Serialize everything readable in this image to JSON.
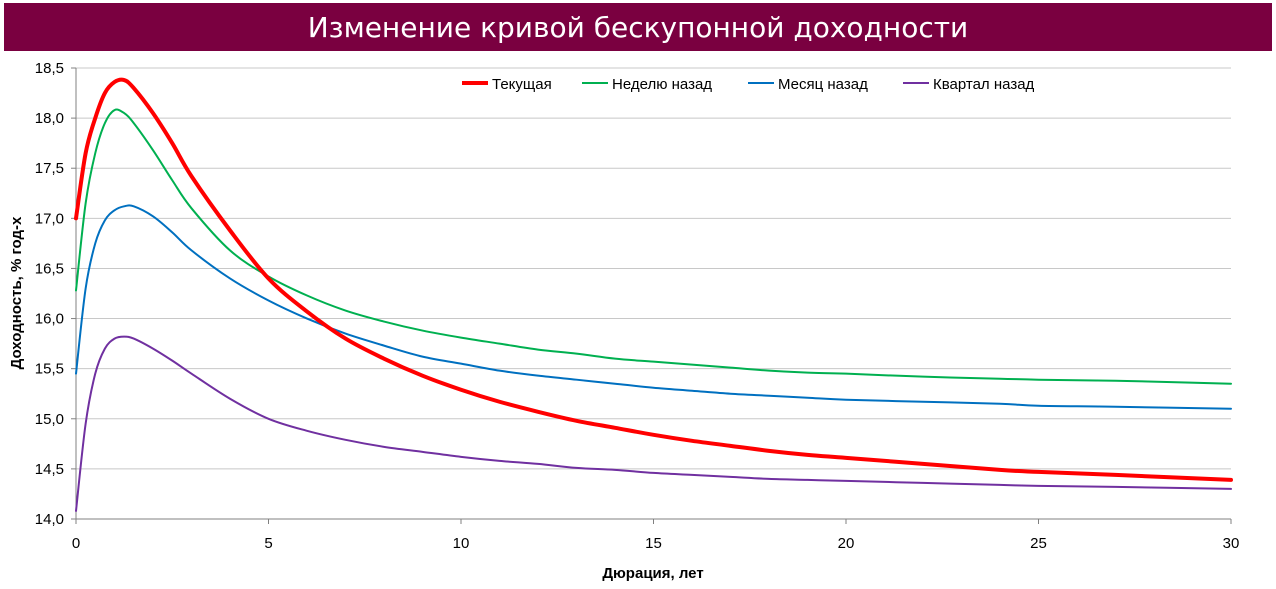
{
  "chart_data": {
    "type": "line",
    "title": "Изменение кривой бескупонной доходности",
    "xlabel": "Дюрация, лет",
    "ylabel": "Доходность, % год-х",
    "xlim": [
      0,
      30
    ],
    "ylim": [
      14.0,
      18.5
    ],
    "x_ticks": [
      "0",
      "5",
      "10",
      "15",
      "20",
      "25",
      "30"
    ],
    "y_ticks": [
      "14,0",
      "14,5",
      "15,0",
      "15,5",
      "16,0",
      "16,5",
      "17,0",
      "17,5",
      "18,0",
      "18,5"
    ],
    "grid": "horizontal",
    "legend_position": "top",
    "series": [
      {
        "name": "Текущая",
        "color": "#ff0000",
        "width": 4,
        "x": [
          0,
          0.25,
          0.5,
          0.75,
          1,
          1.25,
          1.5,
          2,
          2.5,
          3,
          4,
          5,
          6,
          7,
          8,
          9,
          10,
          11,
          12,
          13,
          14,
          15,
          16,
          17,
          18,
          19,
          20,
          22,
          24,
          25,
          27,
          30
        ],
        "y": [
          17.0,
          17.65,
          18.0,
          18.25,
          18.36,
          18.38,
          18.3,
          18.05,
          17.75,
          17.42,
          16.88,
          16.4,
          16.07,
          15.8,
          15.6,
          15.43,
          15.29,
          15.17,
          15.07,
          14.98,
          14.91,
          14.84,
          14.78,
          14.73,
          14.68,
          14.64,
          14.61,
          14.55,
          14.49,
          14.47,
          14.44,
          14.39
        ]
      },
      {
        "name": "Неделю назад",
        "color": "#00b050",
        "width": 2,
        "x": [
          0,
          0.25,
          0.5,
          0.75,
          1,
          1.25,
          1.5,
          2,
          2.5,
          3,
          4,
          5,
          6,
          7,
          8,
          9,
          10,
          11,
          12,
          13,
          14,
          15,
          16,
          17,
          18,
          19,
          20,
          22,
          24,
          25,
          27,
          30
        ],
        "y": [
          16.28,
          17.15,
          17.65,
          17.95,
          18.08,
          18.05,
          17.95,
          17.68,
          17.38,
          17.1,
          16.68,
          16.42,
          16.23,
          16.08,
          15.97,
          15.88,
          15.81,
          15.75,
          15.69,
          15.65,
          15.6,
          15.57,
          15.54,
          15.51,
          15.48,
          15.46,
          15.45,
          15.42,
          15.4,
          15.39,
          15.38,
          15.35
        ]
      },
      {
        "name": "Месяц назад",
        "color": "#0070c0",
        "width": 2,
        "x": [
          0,
          0.25,
          0.5,
          0.75,
          1,
          1.25,
          1.5,
          2,
          2.5,
          3,
          4,
          5,
          6,
          7,
          8,
          9,
          10,
          11,
          12,
          13,
          14,
          15,
          16,
          17,
          18,
          19,
          20,
          22,
          24,
          25,
          27,
          30
        ],
        "y": [
          15.45,
          16.3,
          16.75,
          16.98,
          17.08,
          17.12,
          17.12,
          17.02,
          16.86,
          16.68,
          16.4,
          16.18,
          16.0,
          15.85,
          15.73,
          15.62,
          15.55,
          15.48,
          15.43,
          15.39,
          15.35,
          15.31,
          15.28,
          15.25,
          15.23,
          15.21,
          15.19,
          15.17,
          15.15,
          15.13,
          15.12,
          15.1
        ]
      },
      {
        "name": "Квартал назад",
        "color": "#7030a0",
        "width": 2,
        "x": [
          0,
          0.25,
          0.5,
          0.75,
          1,
          1.25,
          1.5,
          2,
          2.5,
          3,
          4,
          5,
          6,
          7,
          8,
          9,
          10,
          11,
          12,
          13,
          14,
          15,
          16,
          17,
          18,
          19,
          20,
          22,
          24,
          25,
          27,
          30
        ],
        "y": [
          14.08,
          14.95,
          15.45,
          15.7,
          15.8,
          15.82,
          15.8,
          15.7,
          15.58,
          15.45,
          15.2,
          15.0,
          14.88,
          14.79,
          14.72,
          14.67,
          14.62,
          14.58,
          14.55,
          14.51,
          14.49,
          14.46,
          14.44,
          14.42,
          14.4,
          14.39,
          14.38,
          14.36,
          14.34,
          14.33,
          14.32,
          14.3
        ]
      }
    ]
  }
}
